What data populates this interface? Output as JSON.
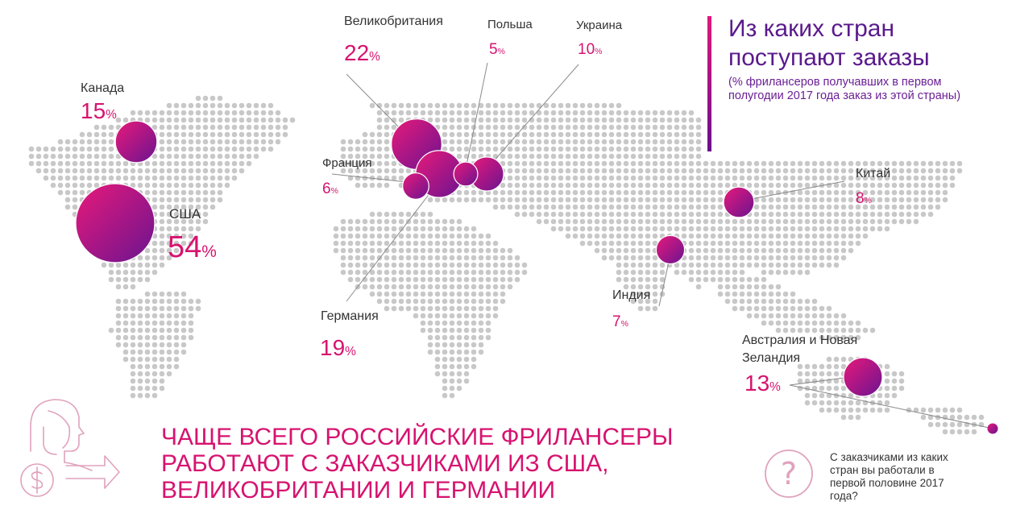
{
  "title": "Из каких стран поступают заказы",
  "subtitle": "(% фрилансеров получавших в первом полугодии 2017 года заказ из этой страны)",
  "headline": "Чаще всего российские фрилансеры работают с заказчиками из США, Великобритании и Германии",
  "question": "С заказчиками из каких стран вы работали в первой половине 2017 года?",
  "percent_sign": "%",
  "colors": {
    "accent": "#d6136f",
    "purple": "#5a1a8c",
    "dots": "#c8c8c8"
  },
  "chart_data": {
    "type": "bubble-map",
    "title": "Из каких стран поступают заказы",
    "unit": "%",
    "countries": [
      {
        "id": "usa",
        "name": "США",
        "value": 54
      },
      {
        "id": "uk",
        "name": "Великобритания",
        "value": 22
      },
      {
        "id": "germany",
        "name": "Германия",
        "value": 19
      },
      {
        "id": "canada",
        "name": "Канада",
        "value": 15
      },
      {
        "id": "australia",
        "name": "Австралия и Новая Зеландия",
        "value": 13
      },
      {
        "id": "ukraine",
        "name": "Украина",
        "value": 10
      },
      {
        "id": "china",
        "name": "Китай",
        "value": 8
      },
      {
        "id": "india",
        "name": "Индия",
        "value": 7
      },
      {
        "id": "france",
        "name": "Франция",
        "value": 6
      },
      {
        "id": "poland",
        "name": "Польша",
        "value": 5
      }
    ]
  }
}
